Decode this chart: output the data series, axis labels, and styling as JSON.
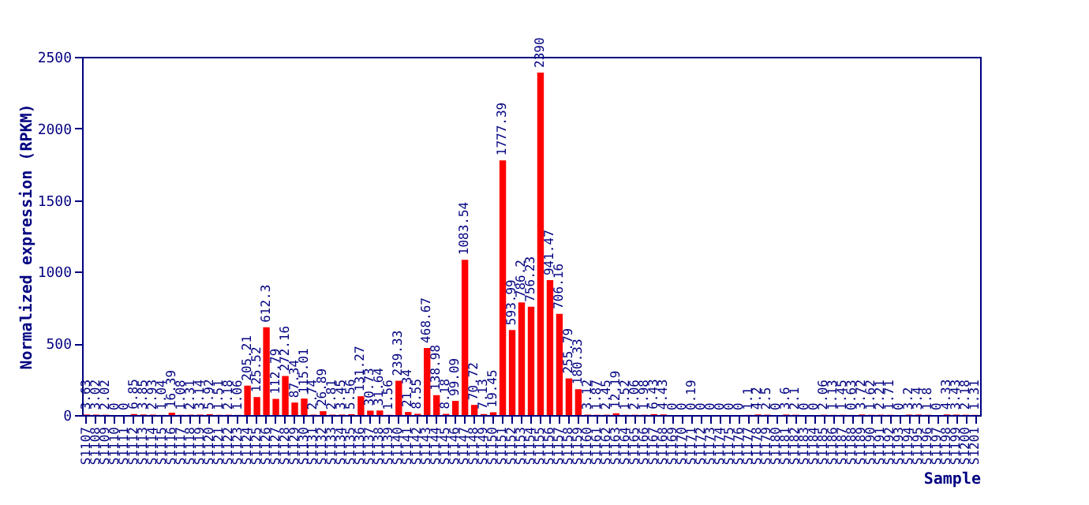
{
  "chart_data": {
    "type": "bar",
    "xlabel": "Sample",
    "ylabel": "Normalized expression (RPKM)",
    "categories": [
      "S1107",
      "S1108",
      "S1109",
      "S1110",
      "S1111",
      "S1112",
      "S1113",
      "S1114",
      "S1115",
      "S1116",
      "S1117",
      "S1118",
      "S1119",
      "S1120",
      "S1121",
      "S1122",
      "S1123",
      "S1124",
      "S1125",
      "S1126",
      "S1127",
      "S1128",
      "S1129",
      "S1130",
      "S1131",
      "S1132",
      "S1133",
      "S1134",
      "S1135",
      "S1136",
      "S1137",
      "S1138",
      "S1139",
      "S1140",
      "S1141",
      "S1142",
      "S1143",
      "S1144",
      "S1145",
      "S1146",
      "S1147",
      "S1148",
      "S1149",
      "S1150",
      "S1151",
      "S1152",
      "S1153",
      "S1154",
      "S1155",
      "S1156",
      "S1157",
      "S1158",
      "S1159",
      "S1160",
      "S1161",
      "S1162",
      "S1163",
      "S1164",
      "S1165",
      "S1166",
      "S1167",
      "S1168",
      "S1169",
      "S1170",
      "S1171",
      "S1172",
      "S1173",
      "S1174",
      "S1175",
      "S1176",
      "S1177",
      "S1178",
      "S1179",
      "S1180",
      "S1181",
      "S1182",
      "S1183",
      "S1184",
      "S1185",
      "S1186",
      "S1187",
      "S1188",
      "S1189",
      "S1190",
      "S1191",
      "S1192",
      "S1193",
      "S1194",
      "S1195",
      "S1196",
      "S1197",
      "S1198",
      "S1199",
      "S1200",
      "S1201"
    ],
    "values": [
      3.63,
      3.02,
      2.02,
      0,
      0,
      6.85,
      3.85,
      2.93,
      1.04,
      16.39,
      1.08,
      2.31,
      3.14,
      5.92,
      1.51,
      2.18,
      1.06,
      205.21,
      125.52,
      612.3,
      112.79,
      272.16,
      87.34,
      115.01,
      2.74,
      26.89,
      2.81,
      3.45,
      5.56,
      131.27,
      30.73,
      31.64,
      1.56,
      239.33,
      21.34,
      8.55,
      468.67,
      138.98,
      8.18,
      99.09,
      1083.54,
      70.72,
      7.13,
      19.45,
      1777.39,
      593.99,
      786.2,
      756.23,
      2390,
      941.47,
      706.16,
      255.79,
      180.33,
      3.12,
      1.87,
      2.45,
      12.19,
      1.52,
      2.06,
      1.98,
      6.43,
      4.43,
      0,
      0,
      0.19,
      0,
      0,
      0,
      0,
      0,
      1.1,
      4.2,
      2.5,
      0,
      3.6,
      2.1,
      0,
      0,
      2.06,
      1.13,
      1.45,
      0.63,
      3.72,
      1.62,
      2.21,
      1.71,
      0,
      3.2,
      3.4,
      1.8,
      0,
      4.33,
      3.43,
      2.18,
      1.31
    ],
    "color": "#ff0000",
    "ylim": [
      0,
      2500
    ],
    "yticks": [
      0,
      500,
      1000,
      1500,
      2000,
      2500
    ],
    "grid": false,
    "data_labels": true
  }
}
